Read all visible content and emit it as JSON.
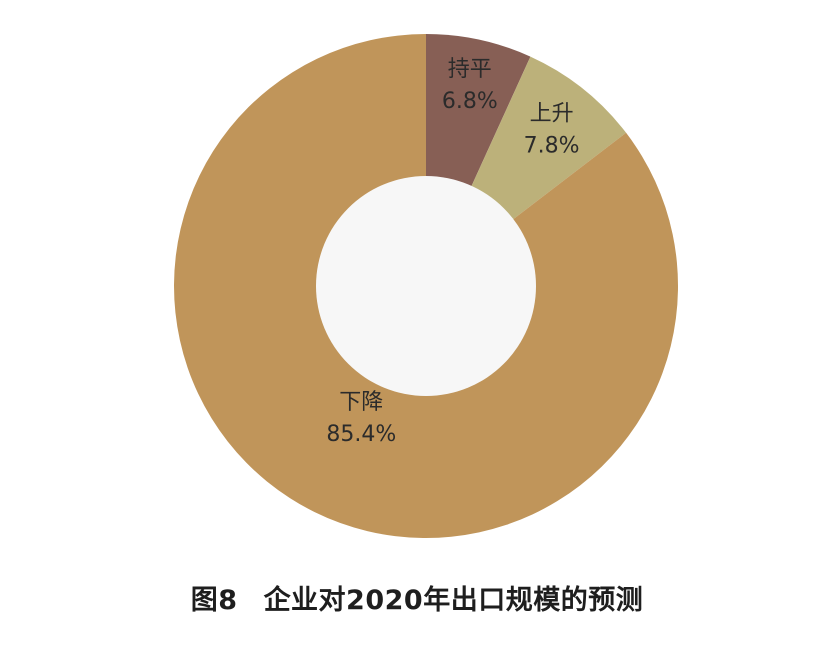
{
  "chart_data": {
    "type": "pie",
    "donut": true,
    "title": "图8　企业对2020年出口规模的预测",
    "figure_number": "图8",
    "caption_text": "企业对2020年出口规模的预测",
    "slices": [
      {
        "name": "持平",
        "value": 6.8,
        "label": "6.8%",
        "color": "#875f55"
      },
      {
        "name": "上升",
        "value": 7.8,
        "label": "7.8%",
        "color": "#bcb17a"
      },
      {
        "name": "下降",
        "value": 85.4,
        "label": "85.4%",
        "color": "#c0955a"
      }
    ],
    "start_angle": "12-o'clock",
    "direction": "clockwise",
    "legend": "none"
  }
}
